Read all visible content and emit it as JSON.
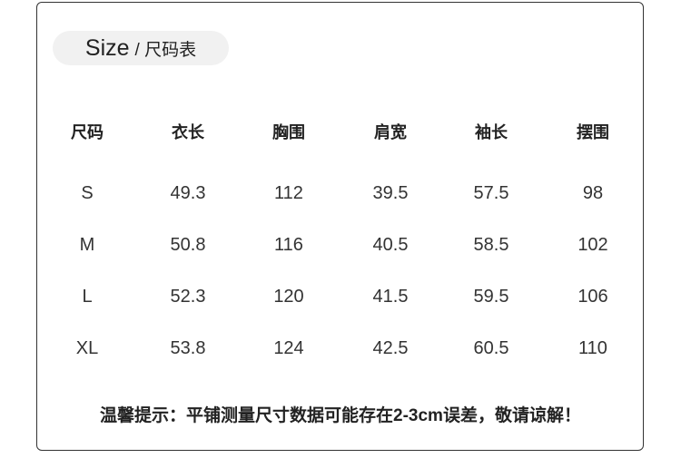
{
  "title": {
    "main": "Size",
    "sub": "/ 尺码表"
  },
  "table": {
    "headers": [
      "尺码",
      "衣长",
      "胸围",
      "肩宽",
      "袖长",
      "摆围"
    ],
    "rows": [
      [
        "S",
        "49.3",
        "112",
        "39.5",
        "57.5",
        "98"
      ],
      [
        "M",
        "50.8",
        "116",
        "40.5",
        "58.5",
        "102"
      ],
      [
        "L",
        "52.3",
        "120",
        "41.5",
        "59.5",
        "106"
      ],
      [
        "XL",
        "53.8",
        "124",
        "42.5",
        "60.5",
        "110"
      ]
    ]
  },
  "note": "温馨提示：平铺测量尺寸数据可能存在2-3cm误差，敬请谅解！"
}
